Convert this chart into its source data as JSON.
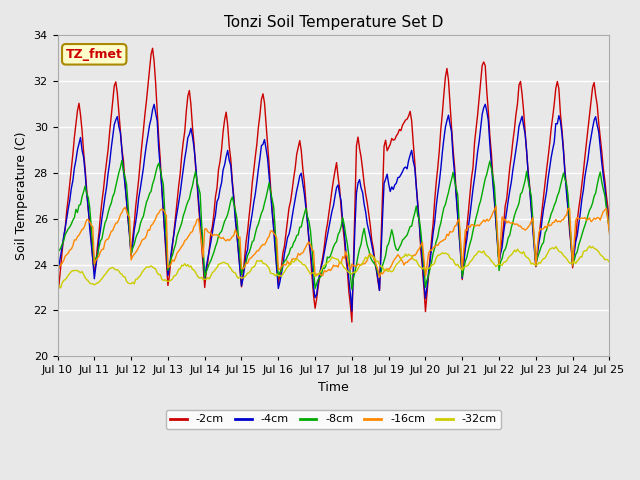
{
  "title": "Tonzi Soil Temperature Set D",
  "xlabel": "Time",
  "ylabel": "Soil Temperature (C)",
  "annotation": "TZ_fmet",
  "ylim": [
    20,
    34
  ],
  "xlim": [
    0,
    360
  ],
  "fig_bg_color": "#e8e8e8",
  "plot_bg_color": "#e8e8e8",
  "lines": [
    {
      "label": "-2cm",
      "color": "#cc0000"
    },
    {
      "label": "-4cm",
      "color": "#0000cc"
    },
    {
      "label": "-8cm",
      "color": "#00aa00"
    },
    {
      "label": "-16cm",
      "color": "#ff8800"
    },
    {
      "label": "-32cm",
      "color": "#cccc00"
    }
  ],
  "tick_labels": [
    "Jul 10",
    "Jul 11",
    "Jul 12",
    "Jul 13",
    "Jul 14",
    "Jul 15",
    "Jul 16",
    "Jul 17",
    "Jul 18",
    "Jul 19",
    "Jul 20",
    "Jul 21",
    "Jul 22",
    "Jul 23",
    "Jul 24",
    "Jul 25"
  ],
  "tick_positions": [
    0,
    24,
    48,
    72,
    96,
    120,
    144,
    168,
    192,
    216,
    240,
    264,
    288,
    312,
    336,
    360
  ],
  "yticks": [
    20,
    22,
    24,
    26,
    28,
    30,
    32,
    34
  ],
  "title_fontsize": 11,
  "axis_fontsize": 9,
  "tick_fontsize": 8,
  "legend_fontsize": 8,
  "annotation_fontsize": 9
}
